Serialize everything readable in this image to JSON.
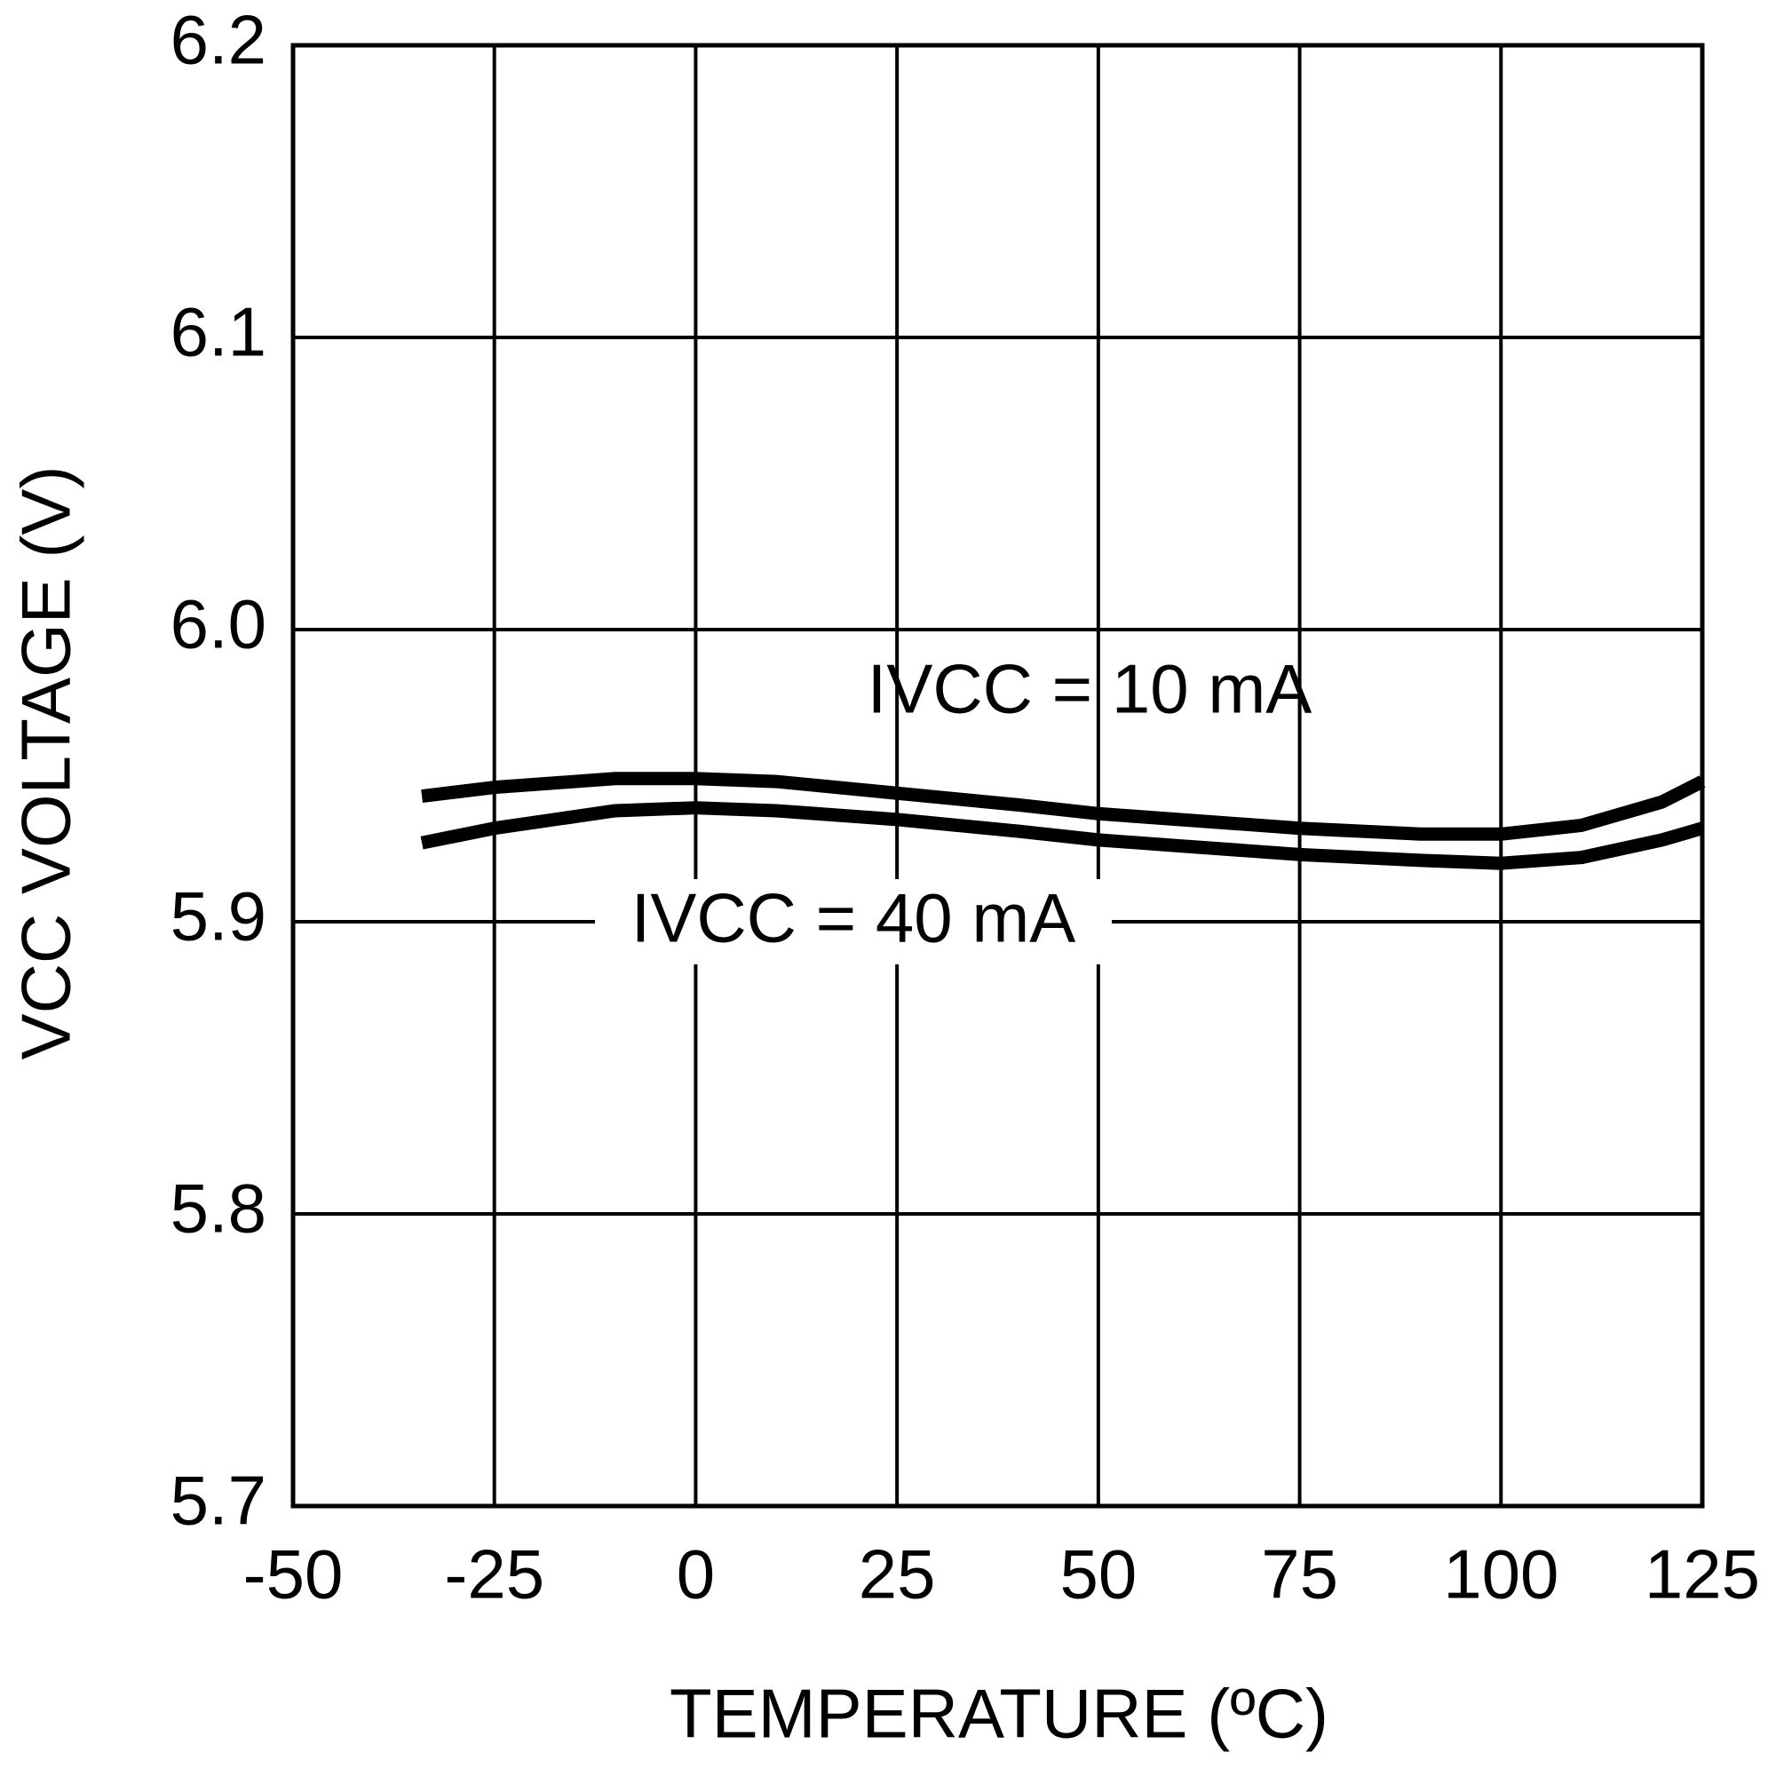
{
  "chart_data": {
    "type": "line",
    "xlabel": "TEMPERATURE (ºC)",
    "ylabel": "VCC VOLTAGE (V)",
    "x": [
      -34,
      -25,
      -10,
      0,
      10,
      25,
      40,
      50,
      60,
      75,
      90,
      100,
      110,
      120,
      125
    ],
    "series": [
      {
        "name": "IVCC = 10 mA",
        "color": "#000000",
        "values": [
          5.943,
          5.946,
          5.949,
          5.949,
          5.948,
          5.944,
          5.94,
          5.937,
          5.935,
          5.932,
          5.93,
          5.93,
          5.933,
          5.941,
          5.948
        ]
      },
      {
        "name": "IVCC = 40 mA",
        "color": "#000000",
        "values": [
          5.927,
          5.932,
          5.938,
          5.939,
          5.938,
          5.935,
          5.931,
          5.928,
          5.926,
          5.923,
          5.921,
          5.92,
          5.922,
          5.928,
          5.932
        ]
      }
    ],
    "xlim": [
      -50,
      125
    ],
    "xticks": [
      -50,
      -25,
      0,
      25,
      50,
      75,
      100,
      125
    ],
    "ylim": [
      5.7,
      6.2
    ],
    "yticks": [
      5.7,
      5.8,
      5.9,
      {
        "value": 6,
        "label": "6.0"
      },
      6.1,
      6.2
    ],
    "grid": true
  }
}
